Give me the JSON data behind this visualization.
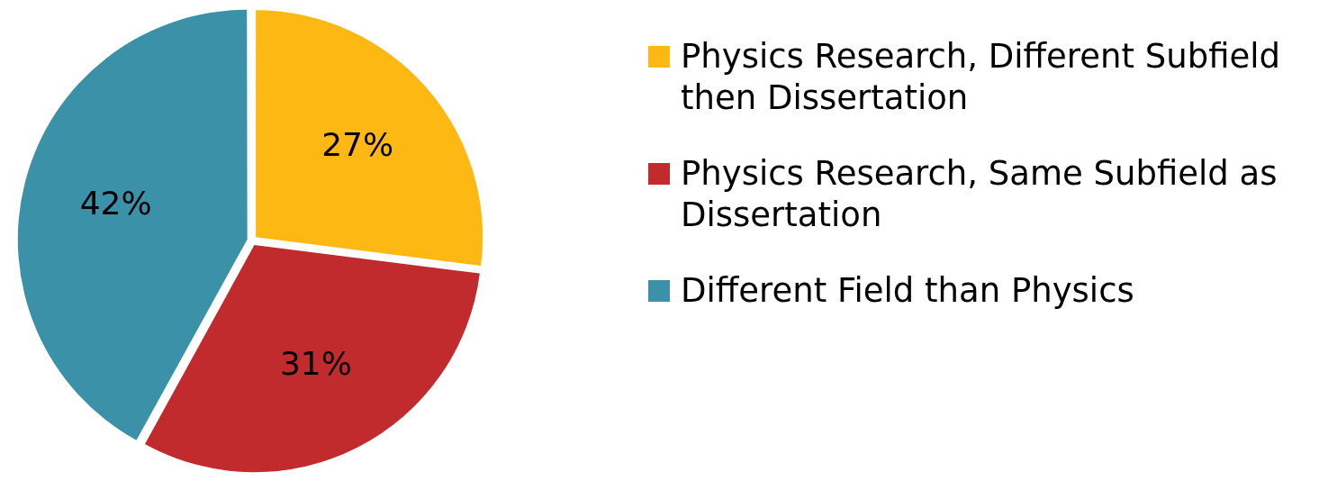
{
  "chart_data": {
    "type": "pie",
    "categories": [
      "Physics Research, Different Subfield then Dissertation",
      "Physics Research, Same Subfield as Dissertation",
      "Different Field than Physics"
    ],
    "values": [
      27,
      31,
      42
    ],
    "colors": [
      "#fdb813",
      "#c12b2e",
      "#3a91a8"
    ],
    "value_labels": [
      "27%",
      "31%",
      "42%"
    ],
    "legend": "right"
  }
}
